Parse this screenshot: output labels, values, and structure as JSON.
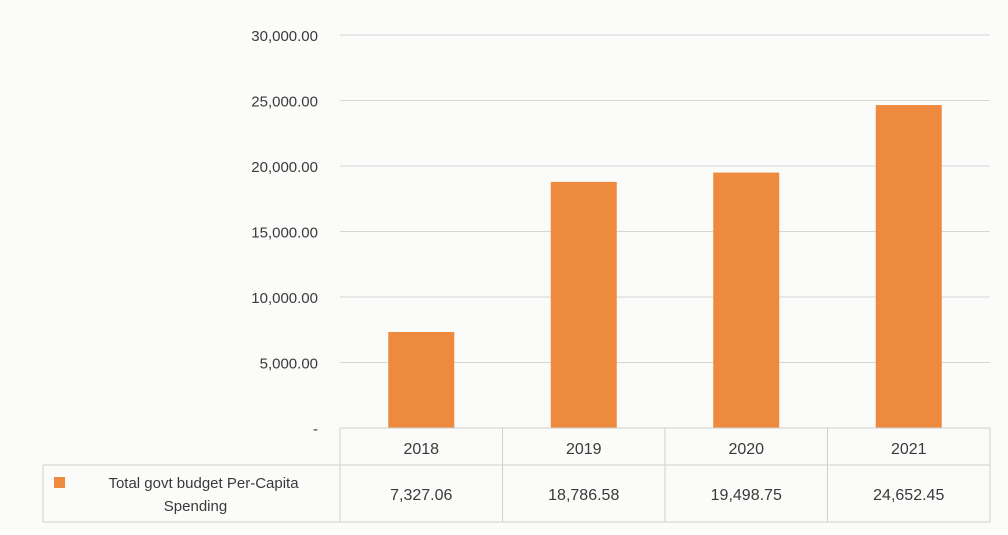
{
  "chart_data": {
    "type": "bar",
    "categories": [
      "2018",
      "2019",
      "2020",
      "2021"
    ],
    "series": [
      {
        "name": "Total govt budget Per-Capita Spending",
        "values": [
          7327.06,
          18786.58,
          19498.75,
          24652.45
        ],
        "value_labels": [
          "7,327.06",
          "18,786.58",
          "19,498.75",
          "24,652.45"
        ],
        "color": "#ee8a3e"
      }
    ],
    "ylim": [
      0,
      30000
    ],
    "yticks": [
      0,
      5000,
      10000,
      15000,
      20000,
      25000,
      30000
    ],
    "ytick_labels": [
      "-",
      "5,000.00",
      "10,000.00",
      "15,000.00",
      "20,000.00",
      "25,000.00",
      "30,000.00"
    ],
    "legend_label_lines": [
      "Total govt budget Per-Capita",
      "Spending"
    ],
    "data_table": true,
    "grid": true,
    "title": "",
    "xlabel": "",
    "ylabel": ""
  },
  "colors": {
    "bar": "#ee8a3e",
    "grid": "#d6d6d6",
    "table_border": "#cfcfcf",
    "text": "#3a3a3a"
  }
}
